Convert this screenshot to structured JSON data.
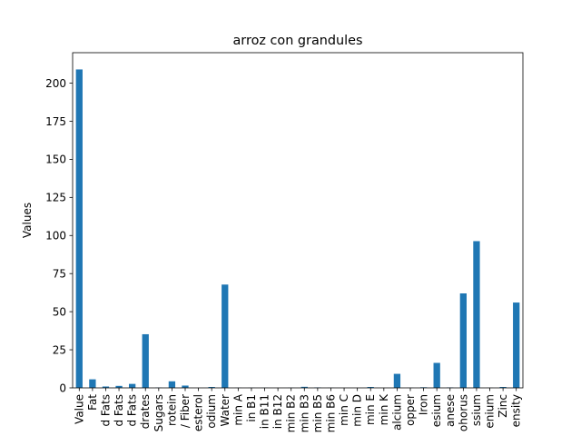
{
  "chart_data": {
    "type": "bar",
    "title": "arroz con grandules",
    "xlabel": "",
    "ylabel": "Values",
    "ylim": [
      0,
      220
    ],
    "yticks": [
      0,
      25,
      50,
      75,
      100,
      125,
      150,
      175,
      200
    ],
    "grid": false,
    "legend": "none",
    "bar_color": "#1f77b4",
    "categories": [
      "Value",
      "Fat",
      "d Fats",
      "d Fats",
      "d Fats",
      "drates",
      "Sugars",
      "rotein",
      "/ Fiber",
      "esterol",
      "odium",
      "Water",
      "min A",
      "in B1",
      "in B11",
      "in B12",
      "min B2",
      "min B3",
      "min B5",
      "min B6",
      "min C",
      "min D",
      "min E",
      "min K",
      "alcium",
      "opper",
      "Iron",
      "esium",
      "anese",
      "ohorus",
      "ssium",
      "enium",
      "Zinc",
      "ensity"
    ],
    "values": [
      209,
      5.6,
      0.9,
      1.3,
      2.6,
      35.2,
      0.2,
      4.3,
      1.5,
      0,
      0.6,
      67.8,
      0.1,
      0.1,
      0.1,
      0,
      0.1,
      0.7,
      0.3,
      0.1,
      0,
      0,
      0.6,
      0,
      9.2,
      0.1,
      0.4,
      16.4,
      0.3,
      62,
      96.3,
      0.1,
      0.6,
      56
    ]
  }
}
